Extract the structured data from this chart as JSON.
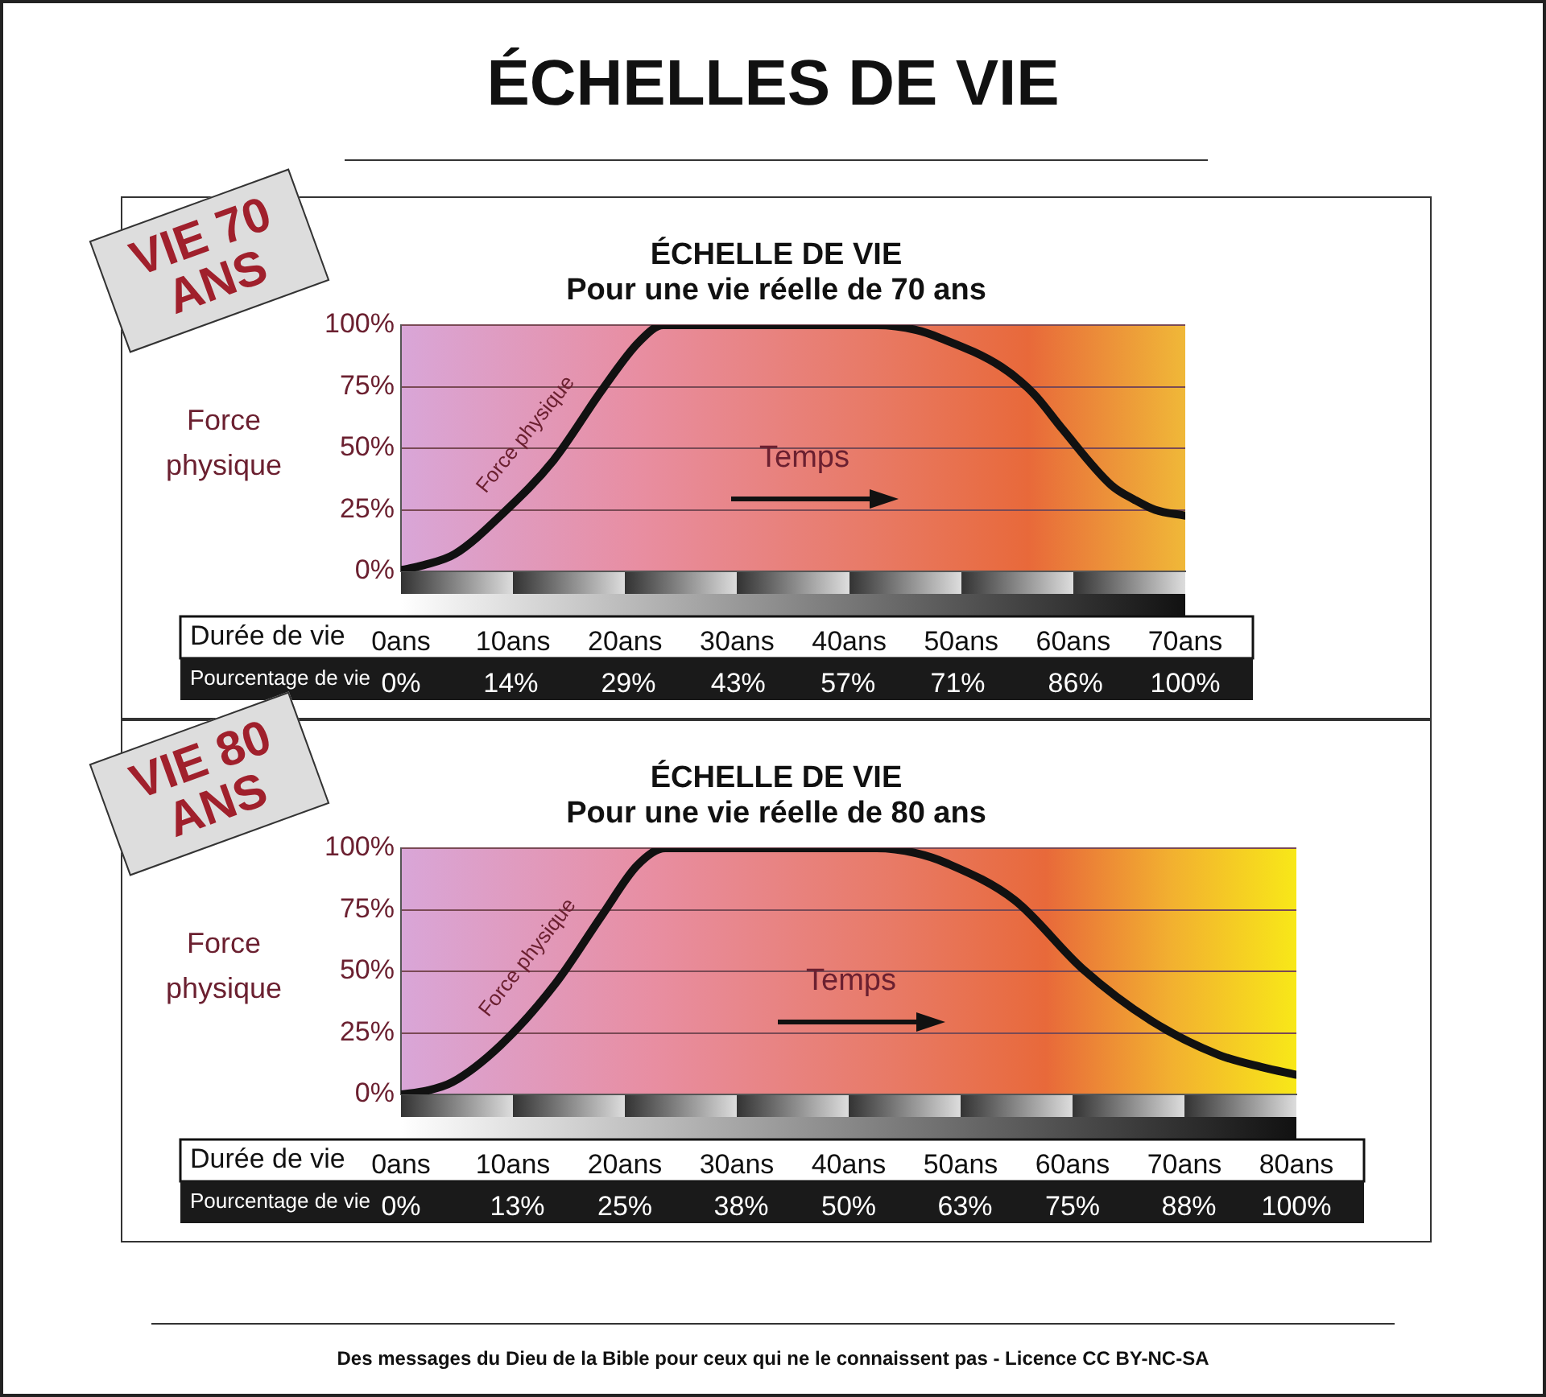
{
  "chart_data": [
    {
      "type": "line",
      "title": "ÉCHELLE DE VIE",
      "subtitle": "Pour une vie réelle de 70 ans",
      "ylabel": "Force physique",
      "xlabel": "Durée de vie",
      "x2label": "Pourcentage de vie",
      "annotations": [
        "ÉCHELLES DE VIE",
        "VIE 70 ANS",
        "Temps"
      ],
      "series": [
        {
          "name": "Force physique",
          "color": "#111111",
          "x": [
            0,
            2,
            4.8,
            9.2,
            13.6,
            18,
            21.2,
            23.4,
            42.5,
            46,
            48,
            53.6,
            56.5,
            59,
            63.4,
            65.5,
            67.3,
            70
          ],
          "values": [
            0.5,
            2.5,
            7,
            24,
            45,
            74,
            93,
            100,
            100,
            98,
            95,
            83,
            72,
            58,
            35,
            29,
            25,
            22.6
          ]
        }
      ],
      "xlim": [
        0,
        70
      ],
      "xticks": [
        {
          "value": 0,
          "label": "0ans"
        },
        {
          "value": 10,
          "label": "10ans"
        },
        {
          "value": 20,
          "label": "20ans"
        },
        {
          "value": 30,
          "label": "30ans"
        },
        {
          "value": 40,
          "label": "40ans"
        },
        {
          "value": 50,
          "label": "50ans"
        },
        {
          "value": 60,
          "label": "60ans"
        },
        {
          "value": 70,
          "label": "70ans"
        }
      ],
      "x2lim": [
        0,
        100
      ],
      "x2ticks": [
        {
          "value": 0,
          "label": "0%"
        },
        {
          "value": 14,
          "label": "14%"
        },
        {
          "value": 29,
          "label": "29%"
        },
        {
          "value": 43,
          "label": "43%"
        },
        {
          "value": 57,
          "label": "57%"
        },
        {
          "value": 71,
          "label": "71%"
        },
        {
          "value": 86,
          "label": "86%"
        },
        {
          "value": 100,
          "label": "100%"
        }
      ],
      "ylim": [
        0,
        100
      ],
      "yticks": [
        {
          "value": 0,
          "label": "0%"
        },
        {
          "value": 25,
          "label": "25%"
        },
        {
          "value": 50,
          "label": "50%"
        },
        {
          "value": 75,
          "label": "75%"
        },
        {
          "value": 100,
          "label": "100%"
        }
      ],
      "grid": "y",
      "legend": false,
      "marker": "none",
      "line_style": "solid"
    },
    {
      "type": "line",
      "title": "ÉCHELLE DE VIE",
      "subtitle": "Pour une vie réelle de 80 ans",
      "ylabel": "Force physique",
      "xlabel": "Durée de vie",
      "x2label": "Pourcentage de vie",
      "annotations": [
        "VIE 80 ANS",
        "Temps",
        "Des messages du Dieu de la Bible pour ceux qui ne le connaissent pas - Licence CC BY-NC-SA"
      ],
      "series": [
        {
          "name": "Force physique",
          "color": "#111111",
          "x": [
            0,
            2.3,
            4.6,
            8.9,
            13.8,
            18,
            21.1,
            23.6,
            42.5,
            46,
            48.7,
            54.8,
            60.9,
            67,
            73.1,
            77,
            80
          ],
          "values": [
            0,
            1.5,
            5,
            20,
            45,
            73,
            93,
            100,
            100,
            98,
            94,
            79,
            51,
            30,
            16,
            11,
            8
          ]
        }
      ],
      "xlim": [
        0,
        80
      ],
      "xticks": [
        {
          "value": 0,
          "label": "0ans"
        },
        {
          "value": 10,
          "label": "10ans"
        },
        {
          "value": 20,
          "label": "20ans"
        },
        {
          "value": 30,
          "label": "30ans"
        },
        {
          "value": 40,
          "label": "40ans"
        },
        {
          "value": 50,
          "label": "50ans"
        },
        {
          "value": 60,
          "label": "60ans"
        },
        {
          "value": 70,
          "label": "70ans"
        },
        {
          "value": 80,
          "label": "80ans"
        }
      ],
      "x2lim": [
        0,
        100
      ],
      "x2ticks": [
        {
          "value": 0,
          "label": "0%"
        },
        {
          "value": 13,
          "label": "13%"
        },
        {
          "value": 25,
          "label": "25%"
        },
        {
          "value": 38,
          "label": "38%"
        },
        {
          "value": 50,
          "label": "50%"
        },
        {
          "value": 63,
          "label": "63%"
        },
        {
          "value": 75,
          "label": "75%"
        },
        {
          "value": 88,
          "label": "88%"
        },
        {
          "value": 100,
          "label": "100%"
        }
      ],
      "ylim": [
        0,
        100
      ],
      "yticks": [
        {
          "value": 0,
          "label": "0%"
        },
        {
          "value": 25,
          "label": "25%"
        },
        {
          "value": 50,
          "label": "50%"
        },
        {
          "value": 75,
          "label": "75%"
        },
        {
          "value": 100,
          "label": "100%"
        }
      ],
      "grid": "y",
      "legend": false,
      "marker": "none",
      "line_style": "solid"
    }
  ]
}
